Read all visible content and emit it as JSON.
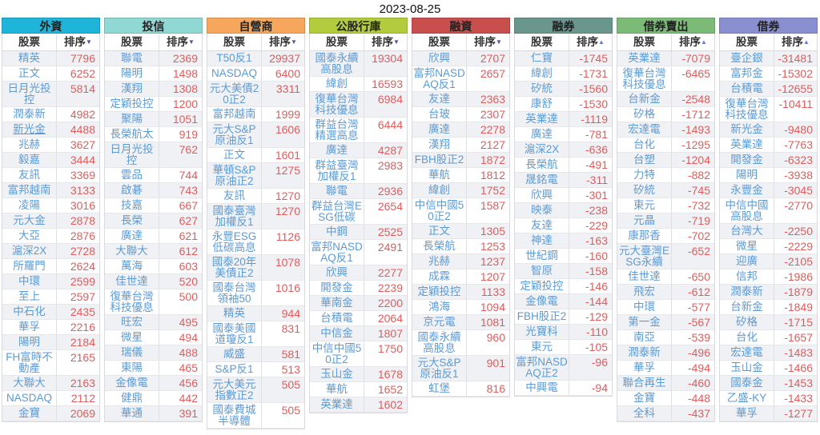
{
  "date": "2023-08-25",
  "subheader": {
    "stock_label": "股票",
    "rank_label": "排序"
  },
  "colors": {
    "stock_name": "#5b9bd5",
    "rank_value": "#e25b5b",
    "desc_arrow": "#5a4b9c",
    "asc_arrow": "#5c7fd0"
  },
  "columns": [
    {
      "key": "foreign",
      "title": "外資",
      "header_color": "#1fb4d9",
      "sort": "desc",
      "rows": [
        {
          "n": "精英",
          "v": "7796"
        },
        {
          "n": "正文",
          "v": "6252"
        },
        {
          "n": "日月光投控",
          "v": "5814"
        },
        {
          "n": "潤泰新",
          "v": "4982"
        },
        {
          "n": "新光金",
          "v": "4488",
          "u": true
        },
        {
          "n": "兆赫",
          "v": "3627"
        },
        {
          "n": "毅嘉",
          "v": "3444"
        },
        {
          "n": "友訊",
          "v": "3369"
        },
        {
          "n": "富邦越南",
          "v": "3133"
        },
        {
          "n": "凌陽",
          "v": "3016"
        },
        {
          "n": "元大金",
          "v": "2878"
        },
        {
          "n": "大亞",
          "v": "2876"
        },
        {
          "n": "滬深2X",
          "v": "2728"
        },
        {
          "n": "所羅門",
          "v": "2624"
        },
        {
          "n": "中環",
          "v": "2599"
        },
        {
          "n": "至上",
          "v": "2597"
        },
        {
          "n": "中石化",
          "v": "2435"
        },
        {
          "n": "華孚",
          "v": "2216"
        },
        {
          "n": "陽明",
          "v": "2184"
        },
        {
          "n": "FH富時不動產",
          "v": "2165"
        },
        {
          "n": "大聯大",
          "v": "2163"
        },
        {
          "n": "NASDAQ",
          "v": "2112"
        },
        {
          "n": "金寶",
          "v": "2069"
        }
      ]
    },
    {
      "key": "invest-trust",
      "title": "投信",
      "header_color": "#90d8d3",
      "sort": "desc",
      "rows": [
        {
          "n": "聯電",
          "v": "2369"
        },
        {
          "n": "陽明",
          "v": "1498"
        },
        {
          "n": "漢翔",
          "v": "1308"
        },
        {
          "n": "定穎投控",
          "v": "1200"
        },
        {
          "n": "聚陽",
          "v": "1051"
        },
        {
          "n": "長榮航太",
          "v": "919"
        },
        {
          "n": "日月光投控",
          "v": "762"
        },
        {
          "n": "雲品",
          "v": "744"
        },
        {
          "n": "啟碁",
          "v": "743"
        },
        {
          "n": "技嘉",
          "v": "667"
        },
        {
          "n": "長榮",
          "v": "627"
        },
        {
          "n": "廣達",
          "v": "621"
        },
        {
          "n": "大聯大",
          "v": "612"
        },
        {
          "n": "萬海",
          "v": "603"
        },
        {
          "n": "佳世達",
          "v": "520"
        },
        {
          "n": "復華台灣科技優息",
          "v": "500"
        },
        {
          "n": "旺宏",
          "v": "495"
        },
        {
          "n": "微星",
          "v": "494"
        },
        {
          "n": "瑞儀",
          "v": "488"
        },
        {
          "n": "東陽",
          "v": "465"
        },
        {
          "n": "金像電",
          "v": "456"
        },
        {
          "n": "健鼎",
          "v": "442"
        },
        {
          "n": "華通",
          "v": "391"
        }
      ]
    },
    {
      "key": "dealer",
      "title": "自營商",
      "header_color": "#f7a75c",
      "sort": "desc",
      "rows": [
        {
          "n": "T50反1",
          "v": "29937"
        },
        {
          "n": "NASDAQ",
          "v": "6400"
        },
        {
          "n": "元大美債20正2",
          "v": "3311"
        },
        {
          "n": "富邦越南",
          "v": "1999"
        },
        {
          "n": "元大S&P原油反1",
          "v": "1606"
        },
        {
          "n": "正文",
          "v": "1601"
        },
        {
          "n": "華頓S&P原油正2",
          "v": "1275"
        },
        {
          "n": "友訊",
          "v": "1270"
        },
        {
          "n": "國泰臺灣加權反1",
          "v": "1270"
        },
        {
          "n": "永豐ESG低碳高息",
          "v": "1126"
        },
        {
          "n": "國泰20年美債正2",
          "v": "1078"
        },
        {
          "n": "國泰台灣領袖50",
          "v": "1016"
        },
        {
          "n": "精英",
          "v": "944"
        },
        {
          "n": "國泰美國道瓊反1",
          "v": "831"
        },
        {
          "n": "威盛",
          "v": "581"
        },
        {
          "n": "S&P反1",
          "v": "513"
        },
        {
          "n": "元大美元指數正2",
          "v": "505"
        },
        {
          "n": "國泰費城半導體",
          "v": "505"
        }
      ]
    },
    {
      "key": "public-banks",
      "title": "公股行庫",
      "header_color": "#b3cc3e",
      "sort": "desc",
      "rows": [
        {
          "n": "國泰永續高股息",
          "v": "19304"
        },
        {
          "n": "緯創",
          "v": "16593"
        },
        {
          "n": "復華台灣科技優息",
          "v": "6984"
        },
        {
          "n": "群益台灣精選高息",
          "v": "6444"
        },
        {
          "n": "廣達",
          "v": "4287"
        },
        {
          "n": "群益臺灣加權反1",
          "v": "2983"
        },
        {
          "n": "聯電",
          "v": "2936"
        },
        {
          "n": "群益台灣ESG低碳",
          "v": "2654"
        },
        {
          "n": "中鋼",
          "v": "2525"
        },
        {
          "n": "富邦NASDAQ反1",
          "v": "2491"
        },
        {
          "n": "欣興",
          "v": "2277"
        },
        {
          "n": "開發金",
          "v": "2239"
        },
        {
          "n": "華南金",
          "v": "2200"
        },
        {
          "n": "台積電",
          "v": "2064"
        },
        {
          "n": "中信金",
          "v": "1807"
        },
        {
          "n": "中信中國50正2",
          "v": "1750"
        },
        {
          "n": "玉山金",
          "v": "1678"
        },
        {
          "n": "華航",
          "v": "1652"
        },
        {
          "n": "英業達",
          "v": "1602"
        }
      ]
    },
    {
      "key": "margin-buy",
      "title": "融資",
      "header_color": "#c94f4f",
      "sort": "desc",
      "rows": [
        {
          "n": "欣興",
          "v": "2707"
        },
        {
          "n": "富邦NASDAQ反1",
          "v": "2657"
        },
        {
          "n": "友達",
          "v": "2363"
        },
        {
          "n": "台玻",
          "v": "2307"
        },
        {
          "n": "廣達",
          "v": "2278"
        },
        {
          "n": "漢翔",
          "v": "2127"
        },
        {
          "n": "FBH股正2",
          "v": "1872"
        },
        {
          "n": "華航",
          "v": "1812"
        },
        {
          "n": "緯創",
          "v": "1752"
        },
        {
          "n": "中信中國50正2",
          "v": "1587"
        },
        {
          "n": "正文",
          "v": "1305"
        },
        {
          "n": "長榮航",
          "v": "1253"
        },
        {
          "n": "兆赫",
          "v": "1237"
        },
        {
          "n": "成霖",
          "v": "1207"
        },
        {
          "n": "定穎投控",
          "v": "1133"
        },
        {
          "n": "鴻海",
          "v": "1094"
        },
        {
          "n": "京元電",
          "v": "1081"
        },
        {
          "n": "國泰永續高股息",
          "v": "960"
        },
        {
          "n": "元大S&P原油反1",
          "v": "901"
        },
        {
          "n": "虹堡",
          "v": "816"
        }
      ]
    },
    {
      "key": "short-sell",
      "title": "融券",
      "header_color": "#6a968e",
      "sort": "asc",
      "rows": [
        {
          "n": "仁寶",
          "v": "-1745"
        },
        {
          "n": "緯創",
          "v": "-1731"
        },
        {
          "n": "矽統",
          "v": "-1560"
        },
        {
          "n": "康舒",
          "v": "-1530"
        },
        {
          "n": "英業達",
          "v": "-1119"
        },
        {
          "n": "廣達",
          "v": "-781"
        },
        {
          "n": "滬深2X",
          "v": "-636"
        },
        {
          "n": "長榮航",
          "v": "-491"
        },
        {
          "n": "晟銘電",
          "v": "-311"
        },
        {
          "n": "欣興",
          "v": "-301"
        },
        {
          "n": "映泰",
          "v": "-238"
        },
        {
          "n": "友達",
          "v": "-229"
        },
        {
          "n": "神達",
          "v": "-163"
        },
        {
          "n": "世紀鋼",
          "v": "-160"
        },
        {
          "n": "智原",
          "v": "-158"
        },
        {
          "n": "定穎投控",
          "v": "-146"
        },
        {
          "n": "金像電",
          "v": "-144"
        },
        {
          "n": "FBH股正2",
          "v": "-129"
        },
        {
          "n": "光寶科",
          "v": "-110"
        },
        {
          "n": "東元",
          "v": "-105"
        },
        {
          "n": "富邦NASDAQ正2",
          "v": "-96"
        },
        {
          "n": "中興電",
          "v": "-94"
        }
      ]
    },
    {
      "key": "sec-lending-sell",
      "title": "借券賣出",
      "header_color": "#7cba77",
      "sort": "asc",
      "rows": [
        {
          "n": "英業達",
          "v": "-7079"
        },
        {
          "n": "復華台灣科技優息",
          "v": "-6465"
        },
        {
          "n": "台新金",
          "v": "-2548"
        },
        {
          "n": "矽格",
          "v": "-1712"
        },
        {
          "n": "宏達電",
          "v": "-1493"
        },
        {
          "n": "台化",
          "v": "-1295"
        },
        {
          "n": "台塑",
          "v": "-1204"
        },
        {
          "n": "力特",
          "v": "-882"
        },
        {
          "n": "矽統",
          "v": "-745"
        },
        {
          "n": "東元",
          "v": "-732"
        },
        {
          "n": "元晶",
          "v": "-719"
        },
        {
          "n": "康那香",
          "v": "-702"
        },
        {
          "n": "元大臺灣ESG永續",
          "v": "-652"
        },
        {
          "n": "佳世達",
          "v": "-650"
        },
        {
          "n": "飛宏",
          "v": "-612"
        },
        {
          "n": "中環",
          "v": "-577"
        },
        {
          "n": "第一金",
          "v": "-567"
        },
        {
          "n": "南亞",
          "v": "-539"
        },
        {
          "n": "潤泰新",
          "v": "-496"
        },
        {
          "n": "華孚",
          "v": "-494"
        },
        {
          "n": "聯合再生",
          "v": "-460"
        },
        {
          "n": "金寶",
          "v": "-448"
        },
        {
          "n": "全科",
          "v": "-437"
        }
      ]
    },
    {
      "key": "sec-lending",
      "title": "借券",
      "header_color": "#8a8fd0",
      "sort": "asc",
      "rows": [
        {
          "n": "臺企銀",
          "v": "-31481"
        },
        {
          "n": "富邦金",
          "v": "-15302"
        },
        {
          "n": "台積電",
          "v": "-12655"
        },
        {
          "n": "復華台灣科技優息",
          "v": "-10411"
        },
        {
          "n": "新光金",
          "v": "-9480"
        },
        {
          "n": "英業達",
          "v": "-7763"
        },
        {
          "n": "開發金",
          "v": "-6323"
        },
        {
          "n": "陽明",
          "v": "-3938"
        },
        {
          "n": "永豐金",
          "v": "-3045"
        },
        {
          "n": "中信中國高股息",
          "v": "-2770"
        },
        {
          "n": "台灣大",
          "v": "-2250"
        },
        {
          "n": "微星",
          "v": "-2229"
        },
        {
          "n": "迎廣",
          "v": "-2105"
        },
        {
          "n": "信邦",
          "v": "-1986"
        },
        {
          "n": "潤泰新",
          "v": "-1879"
        },
        {
          "n": "台新金",
          "v": "-1849"
        },
        {
          "n": "矽格",
          "v": "-1715"
        },
        {
          "n": "台化",
          "v": "-1657"
        },
        {
          "n": "宏達電",
          "v": "-1483"
        },
        {
          "n": "玉山金",
          "v": "-1466"
        },
        {
          "n": "國泰金",
          "v": "-1453"
        },
        {
          "n": "乙盛-KY",
          "v": "-1433"
        },
        {
          "n": "華孚",
          "v": "-1277"
        }
      ]
    }
  ]
}
